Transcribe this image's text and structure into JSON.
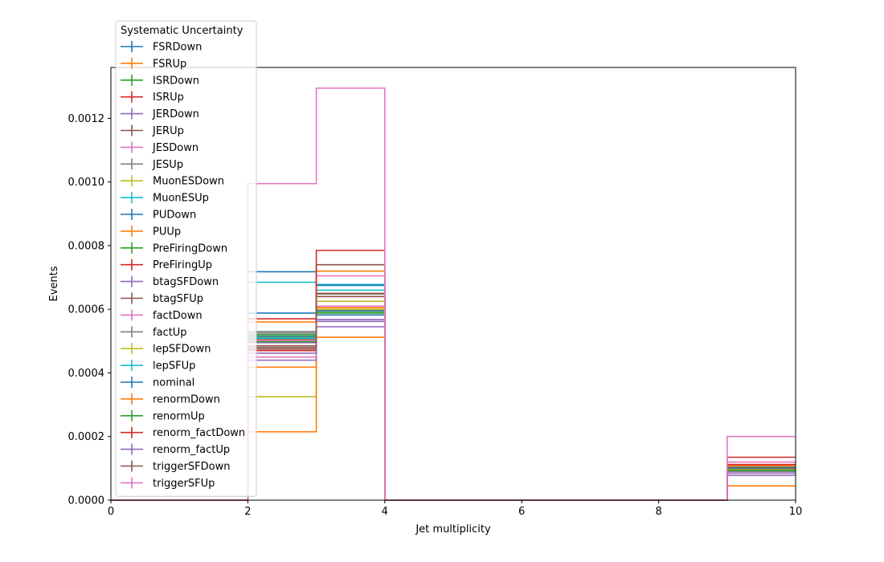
{
  "chart_data": {
    "type": "step",
    "xlabel": "Jet multiplicity",
    "ylabel": "Events",
    "xlim": [
      0,
      10
    ],
    "ylim": [
      0,
      0.00136
    ],
    "bin_edges": [
      0,
      1,
      2,
      3,
      4,
      5,
      6,
      7,
      8,
      9,
      10
    ],
    "x_ticks": [
      0,
      2,
      4,
      6,
      8,
      10
    ],
    "x_tick_labels": [
      "0",
      "2",
      "4",
      "6",
      "8",
      "10"
    ],
    "y_ticks": [
      0,
      0.0002,
      0.0004,
      0.0006,
      0.0008,
      0.001,
      0.0012
    ],
    "y_tick_labels": [
      "0.0000",
      "0.0002",
      "0.0004",
      "0.0006",
      "0.0008",
      "0.0010",
      "0.0012"
    ],
    "legend": {
      "title": "Systematic Uncertainty",
      "location": "top-left"
    },
    "series": [
      {
        "name": "FSRDown",
        "color": "#1f77b4",
        "values": [
          0,
          0,
          0.000588,
          0.000595,
          0,
          0,
          0,
          0,
          0,
          0.000105
        ]
      },
      {
        "name": "FSRUp",
        "color": "#ff7f0e",
        "values": [
          0,
          0,
          0.000418,
          0.000605,
          0,
          0,
          0,
          0,
          0,
          9.8e-05
        ]
      },
      {
        "name": "ISRDown",
        "color": "#2ca02c",
        "values": [
          0,
          0,
          0.00052,
          0.000598,
          0,
          0,
          0,
          0,
          0,
          0.000103
        ]
      },
      {
        "name": "ISRUp",
        "color": "#d62728",
        "values": [
          0,
          0,
          0.000505,
          0.000648,
          0,
          0,
          0,
          0,
          0,
          0.00011
        ]
      },
      {
        "name": "JERDown",
        "color": "#9467bd",
        "values": [
          0,
          0,
          0.000495,
          0.000562,
          0,
          0,
          0,
          0,
          0,
          9.8e-05
        ]
      },
      {
        "name": "JERUp",
        "color": "#8c564b",
        "values": [
          0,
          0,
          0.000485,
          0.00074,
          0,
          0,
          0,
          0,
          0,
          0.000105
        ]
      },
      {
        "name": "JESDown",
        "color": "#e377c2",
        "values": [
          0,
          0,
          0.0005,
          0.000705,
          0,
          0,
          0,
          0,
          0,
          0.00012
        ]
      },
      {
        "name": "JESUp",
        "color": "#7f7f7f",
        "values": [
          0,
          0,
          0.00053,
          0.000648,
          0,
          0,
          0,
          0,
          0,
          0.0001
        ]
      },
      {
        "name": "MuonESDown",
        "color": "#bcbd22",
        "values": [
          0,
          0,
          0.000325,
          0.000625,
          0,
          0,
          0,
          0,
          0,
          9.5e-05
        ]
      },
      {
        "name": "MuonESUp",
        "color": "#17becf",
        "values": [
          0,
          0,
          0.000685,
          0.000678,
          0,
          0,
          0,
          0,
          0,
          0.000102
        ]
      },
      {
        "name": "PUDown",
        "color": "#1f77b4",
        "values": [
          0,
          0,
          0.000718,
          0.000675,
          0,
          0,
          0,
          0,
          0,
          0.000108
        ]
      },
      {
        "name": "PUUp",
        "color": "#ff7f0e",
        "values": [
          0,
          0,
          0.000215,
          0.000512,
          0,
          0,
          0,
          0,
          0,
          4.5e-05
        ]
      },
      {
        "name": "PreFiringDown",
        "color": "#2ca02c",
        "values": [
          0,
          0,
          0.00051,
          0.00059,
          0,
          0,
          0,
          0,
          0,
          0.0001
        ]
      },
      {
        "name": "PreFiringUp",
        "color": "#d62728",
        "values": [
          0,
          0,
          0.00047,
          0.00064,
          0,
          0,
          0,
          0,
          0,
          0.000112
        ]
      },
      {
        "name": "btagSFDown",
        "color": "#9467bd",
        "values": [
          0,
          0,
          0.00044,
          0.000545,
          0,
          0,
          0,
          0,
          0,
          7.8e-05
        ]
      },
      {
        "name": "btagSFUp",
        "color": "#8c564b",
        "values": [
          0,
          0,
          0.00048,
          0.00065,
          0,
          0,
          0,
          0,
          0,
          9.2e-05
        ]
      },
      {
        "name": "factDown",
        "color": "#e377c2",
        "values": [
          0,
          0,
          0.00045,
          0.00061,
          0,
          0,
          0,
          0,
          0,
          9.6e-05
        ]
      },
      {
        "name": "factUp",
        "color": "#7f7f7f",
        "values": [
          0,
          0,
          0.000525,
          0.000598,
          0,
          0,
          0,
          0,
          0,
          9e-05
        ]
      },
      {
        "name": "lepSFDown",
        "color": "#bcbd22",
        "values": [
          0,
          0,
          0.000515,
          0.0006,
          0,
          0,
          0,
          0,
          0,
          9.8e-05
        ]
      },
      {
        "name": "lepSFUp",
        "color": "#17becf",
        "values": [
          0,
          0,
          0.000508,
          0.00066,
          0,
          0,
          0,
          0,
          0,
          0.000104
        ]
      },
      {
        "name": "nominal",
        "color": "#1f77b4",
        "values": [
          0,
          0,
          0.000515,
          0.000582,
          0,
          0,
          0,
          0,
          0,
          0.0001
        ]
      },
      {
        "name": "renormDown",
        "color": "#ff7f0e",
        "values": [
          0,
          0,
          0.00056,
          0.00072,
          0,
          0,
          0,
          0,
          0,
          0.000108
        ]
      },
      {
        "name": "renormUp",
        "color": "#2ca02c",
        "values": [
          0,
          0,
          0.000498,
          0.000588,
          0,
          0,
          0,
          0,
          0,
          9.4e-05
        ]
      },
      {
        "name": "renorm_factDown",
        "color": "#d62728",
        "values": [
          0,
          0,
          0.00057,
          0.000785,
          0,
          0,
          0,
          0,
          0,
          0.000135
        ]
      },
      {
        "name": "renorm_factUp",
        "color": "#9467bd",
        "values": [
          0,
          0,
          0.000462,
          0.000568,
          0,
          0,
          0,
          0,
          0,
          8.5e-05
        ]
      },
      {
        "name": "triggerSFDown",
        "color": "#8c564b",
        "values": [
          0,
          0,
          0.000475,
          0.00064,
          0,
          0,
          0,
          0,
          0,
          0.000102
        ]
      },
      {
        "name": "triggerSFUp",
        "color": "#e377c2",
        "values": [
          0,
          0,
          0.000995,
          0.001295,
          0,
          0,
          0,
          0,
          0,
          0.0002
        ]
      }
    ]
  }
}
